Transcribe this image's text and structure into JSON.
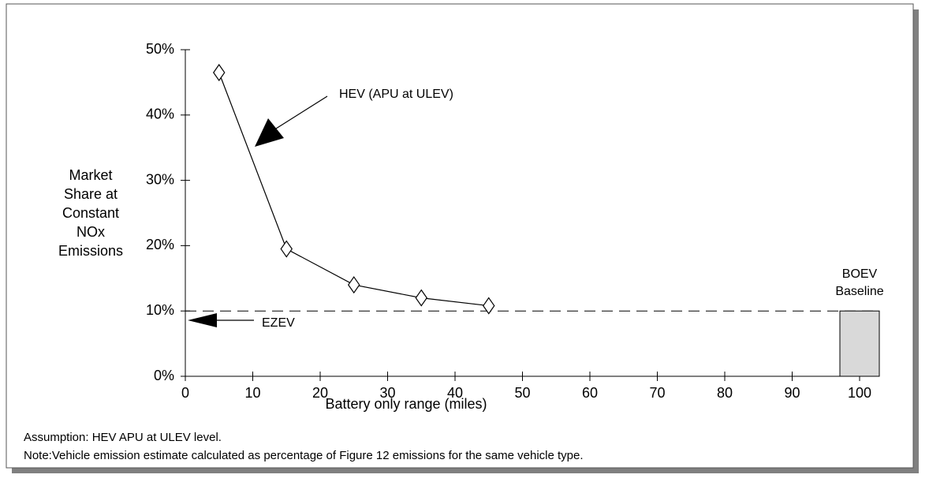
{
  "chart_data": {
    "type": "line",
    "x_label": "Battery only range (miles)",
    "y_label": [
      "Market",
      "Share at",
      "Constant",
      "NOx",
      "Emissions"
    ],
    "x": [
      5,
      15,
      25,
      35,
      45
    ],
    "series": [
      {
        "values": [
          46.5,
          19.5,
          14,
          12,
          10.8
        ],
        "color": "#000000"
      }
    ],
    "reference_line": {
      "value": 10,
      "style": "dashed"
    },
    "baseline_bar": {
      "label": [
        "BOEV",
        "Baseline"
      ],
      "x": 100,
      "value": 10,
      "color": "#d9d9d9"
    },
    "annotations": [
      "HEV (APU at ULEV)",
      "EZEV"
    ],
    "notes": [
      "Assumption: HEV APU at ULEV level.",
      "Note:Vehicle emission estimate calculated as percentage of Figure 12  emissions for the same vehicle type."
    ],
    "xlim": [
      0,
      100
    ],
    "xticks": [
      0,
      10,
      20,
      30,
      40,
      50,
      60,
      70,
      80,
      90,
      100
    ],
    "ylim": [
      0,
      50
    ],
    "yticks": [
      {
        "value": 0,
        "label": "0%"
      },
      {
        "value": 10,
        "label": "10%"
      },
      {
        "value": 20,
        "label": "20%"
      },
      {
        "value": 30,
        "label": "30%"
      },
      {
        "value": 40,
        "label": "40%"
      },
      {
        "value": 50,
        "label": "50%"
      }
    ]
  }
}
